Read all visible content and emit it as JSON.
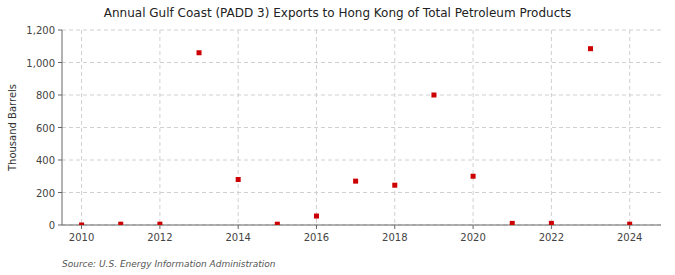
{
  "chart_data": {
    "type": "scatter",
    "title": "Annual Gulf Coast (PADD 3) Exports to Hong Kong of Total Petroleum Products",
    "ylabel": "Thousand Barrels",
    "source": "Source: U.S. Energy Information Administration",
    "x": [
      2010,
      2011,
      2012,
      2013,
      2014,
      2015,
      2016,
      2017,
      2018,
      2019,
      2020,
      2021,
      2022,
      2023,
      2024
    ],
    "values": [
      0,
      5,
      5,
      1060,
      280,
      5,
      55,
      270,
      245,
      800,
      300,
      10,
      10,
      1085,
      5
    ],
    "color": "#cc0000",
    "marker": "square",
    "xlim": [
      2009.5,
      2024.8
    ],
    "ylim": [
      0,
      1200
    ],
    "xticks": [
      2010,
      2012,
      2014,
      2016,
      2018,
      2020,
      2022,
      2024
    ],
    "yticks": [
      0,
      200,
      400,
      600,
      800,
      {
        "value": 1000,
        "label": "1,000"
      },
      {
        "value": 1200,
        "label": "1,200"
      }
    ],
    "grid": true
  }
}
